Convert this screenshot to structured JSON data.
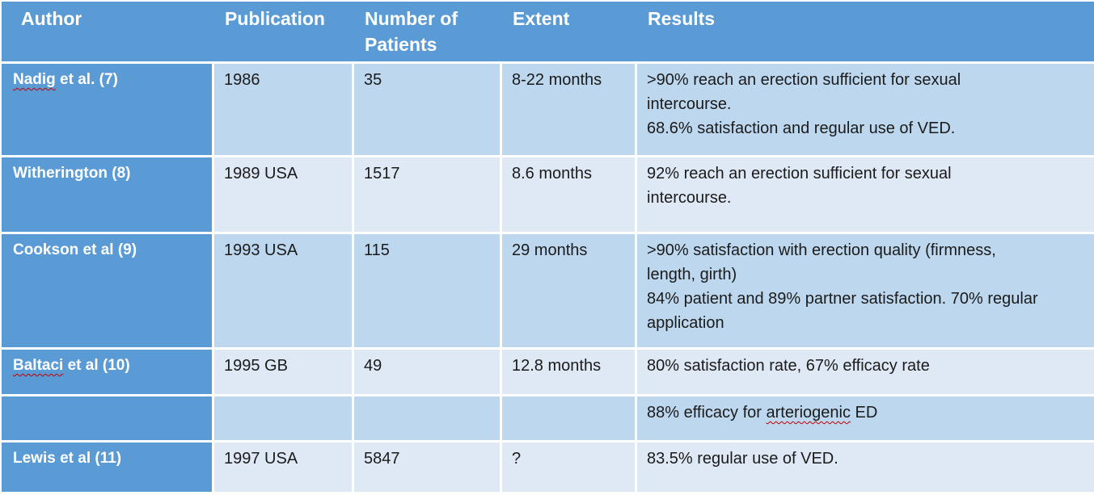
{
  "colors": {
    "accent_blue": "#5b9bd5",
    "band_medium": "#bdd7ee",
    "band_light": "#dfe9f5",
    "gridline": "#ffffff",
    "header_text": "#ffffff",
    "body_text": "#1b1b1b",
    "spellcheck_red": "#c00000"
  },
  "table": {
    "columns": [
      "Author",
      "Publication",
      "Number of Patients",
      "Extent",
      "Results"
    ],
    "rows": [
      {
        "author_word": "Nadig",
        "author_tail": " et al. (7)",
        "publication": "1986",
        "patients": "35",
        "extent": "8-22 months",
        "results": [
          ">90% reach an erection sufficient for sexual",
          "intercourse.",
          "68.6% satisfaction and regular use of VED."
        ]
      },
      {
        "author": "Witherington (8)",
        "publication": "1989 USA",
        "patients": "1517",
        "extent": "8.6 months",
        "results": [
          "92% reach an erection sufficient for sexual",
          "intercourse."
        ]
      },
      {
        "author": "Cookson et al (9)",
        "publication": "1993 USA",
        "patients": "115",
        "extent": "29 months",
        "results": [
          ">90% satisfaction with erection quality (firmness,",
          "length, girth)",
          "84% patient and 89% partner satisfaction. 70% regular",
          "application"
        ]
      },
      {
        "author_word": "Baltaci",
        "author_tail": " et al (10)",
        "publication": "1995 GB",
        "patients": "49",
        "extent": "12.8 months",
        "results": [
          "80% satisfaction rate, 67% efficacy rate"
        ]
      },
      {
        "author": "",
        "publication": "",
        "patients": "",
        "extent": "",
        "results_pre": "88% efficacy for ",
        "results_word": "arteriogenic",
        "results_post": " ED"
      },
      {
        "author": "Lewis et al (11)",
        "publication": "1997 USA",
        "patients": "5847",
        "extent": "?",
        "results": [
          "83.5% regular use of VED."
        ]
      }
    ]
  }
}
